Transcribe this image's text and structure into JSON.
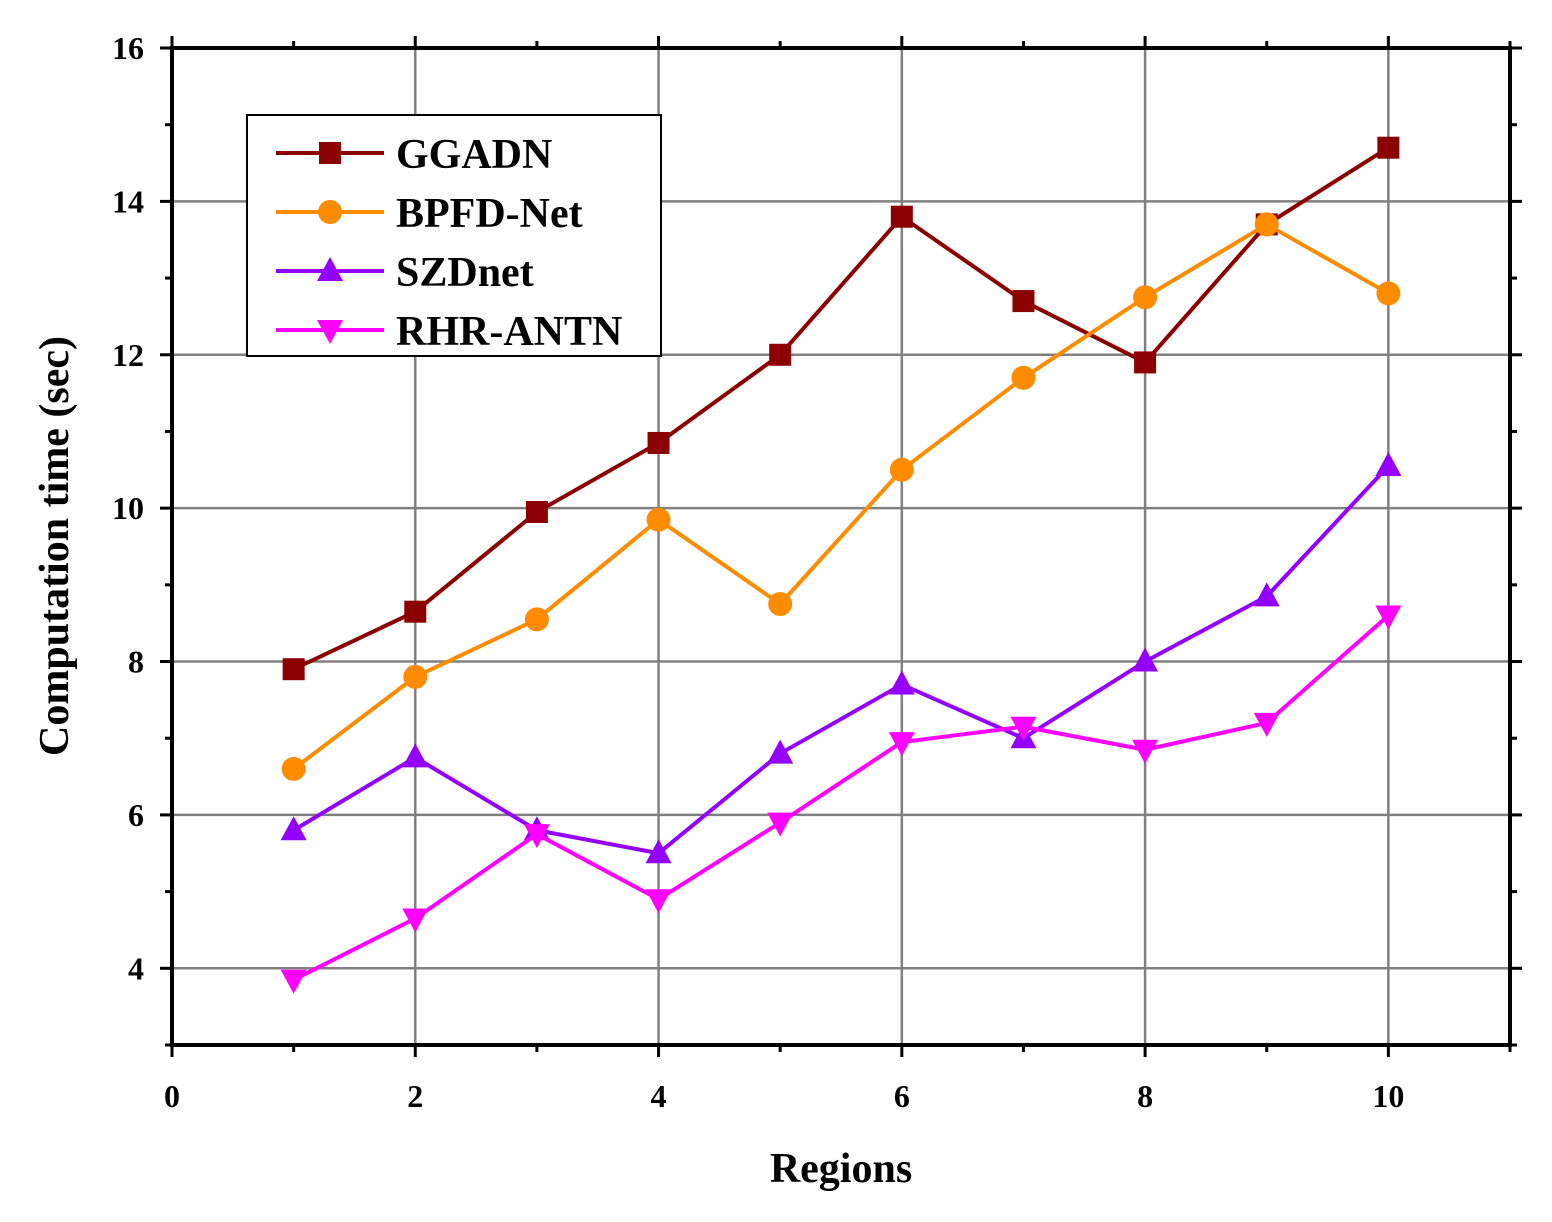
{
  "chart_data": {
    "type": "line",
    "title": "",
    "xlabel": "Regions",
    "ylabel": "Computation time (sec)",
    "xlim": [
      0,
      11
    ],
    "ylim": [
      3,
      16
    ],
    "xticks": [
      0,
      2,
      4,
      6,
      8,
      10
    ],
    "xtick_labels": [
      "0",
      "2",
      "4",
      "6",
      "8",
      "10"
    ],
    "yticks": [
      4,
      6,
      8,
      10,
      12,
      14,
      16
    ],
    "ytick_labels": [
      "4",
      "6",
      "8",
      "10",
      "12",
      "14",
      "16"
    ],
    "grid": true,
    "legend_position": "top-left",
    "x": [
      1,
      2,
      3,
      4,
      5,
      6,
      7,
      8,
      9,
      10
    ],
    "series": [
      {
        "name": "GGADN",
        "color": "#8B0000",
        "marker": "square",
        "values": [
          7.9,
          8.65,
          9.95,
          10.85,
          12.0,
          13.8,
          12.7,
          11.9,
          13.7,
          14.7
        ]
      },
      {
        "name": "BPFD-Net",
        "color": "#FF8C00",
        "marker": "circle",
        "values": [
          6.6,
          7.8,
          8.55,
          9.85,
          8.75,
          10.5,
          11.7,
          12.75,
          13.7,
          12.8
        ]
      },
      {
        "name": "SZDnet",
        "color": "#9400FF",
        "marker": "triangle-up",
        "values": [
          5.8,
          6.75,
          5.8,
          5.5,
          6.8,
          7.7,
          7.0,
          8.0,
          8.85,
          10.55
        ]
      },
      {
        "name": "RHR-ANTN",
        "color": "#FF00FF",
        "marker": "triangle-down",
        "values": [
          3.85,
          4.65,
          5.75,
          4.9,
          5.9,
          6.95,
          7.15,
          6.85,
          7.2,
          8.6
        ]
      }
    ]
  }
}
